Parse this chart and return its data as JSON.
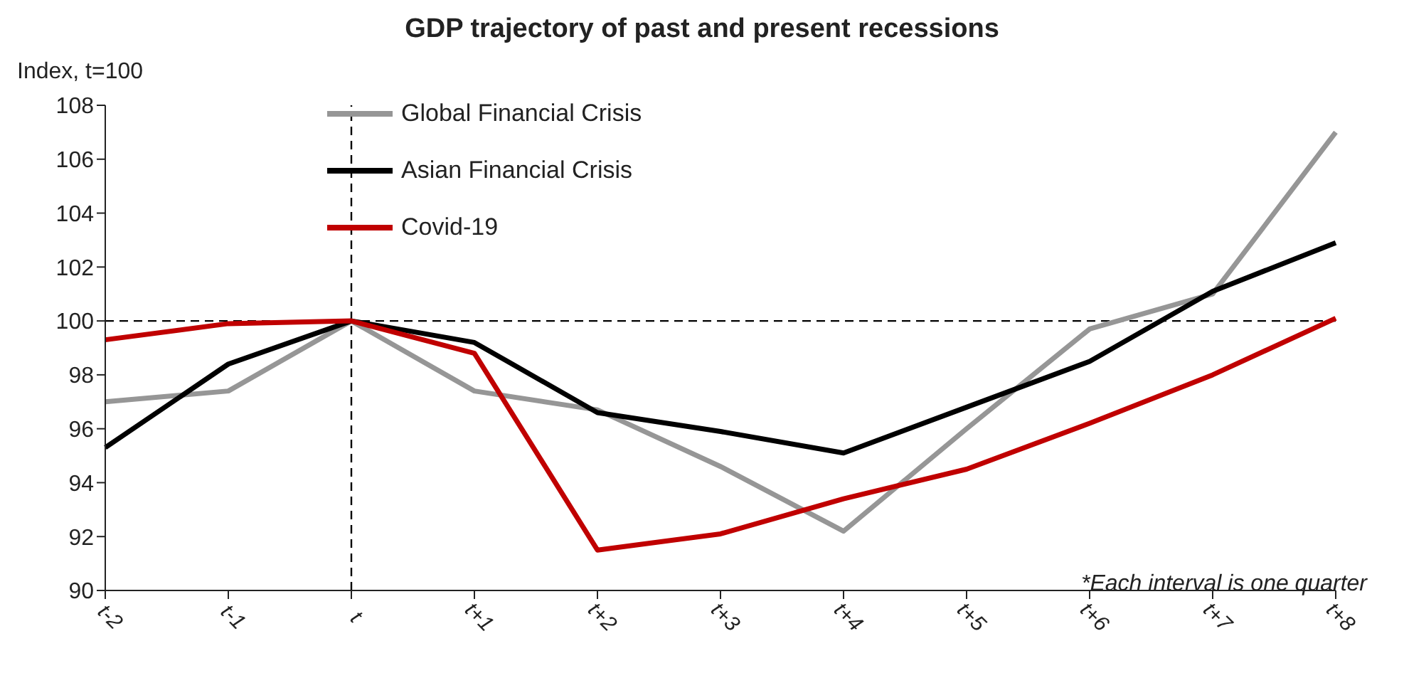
{
  "chart_data": {
    "type": "line",
    "title": "GDP trajectory of past and present recessions",
    "ylabel": "Index, t=100",
    "categories": [
      "t-2",
      "t-1",
      "t",
      "t+1",
      "t+2",
      "t+3",
      "t+4",
      "t+5",
      "t+6",
      "t+7",
      "t+8"
    ],
    "series": [
      {
        "name": "Global Financial Crisis",
        "color": "#969696",
        "values": [
          97.0,
          97.4,
          100,
          97.4,
          96.7,
          94.6,
          92.2,
          96.0,
          99.7,
          101.0,
          107.0
        ]
      },
      {
        "name": "Asian Financial Crisis",
        "color": "#000000",
        "values": [
          95.3,
          98.4,
          100,
          99.2,
          96.6,
          95.9,
          95.1,
          96.8,
          98.5,
          101.1,
          102.9
        ]
      },
      {
        "name": "Covid-19",
        "color": "#c00000",
        "values": [
          99.3,
          99.9,
          100,
          98.8,
          91.5,
          92.1,
          93.4,
          94.5,
          96.2,
          98.0,
          100.1
        ]
      }
    ],
    "ylim": [
      90,
      108
    ],
    "yticks": [
      90,
      92,
      94,
      96,
      98,
      100,
      102,
      104,
      106,
      108
    ],
    "ref_lines": [
      {
        "axis": "y",
        "value": 100,
        "line_style": "dashed",
        "color": "#000000"
      },
      {
        "axis": "x",
        "value": "t",
        "line_style": "dashed",
        "color": "#000000"
      }
    ],
    "annotations": [
      "*Each interval is one quarter"
    ],
    "grid": false,
    "legend": "top left",
    "marker": "none",
    "line_style": "solid"
  }
}
